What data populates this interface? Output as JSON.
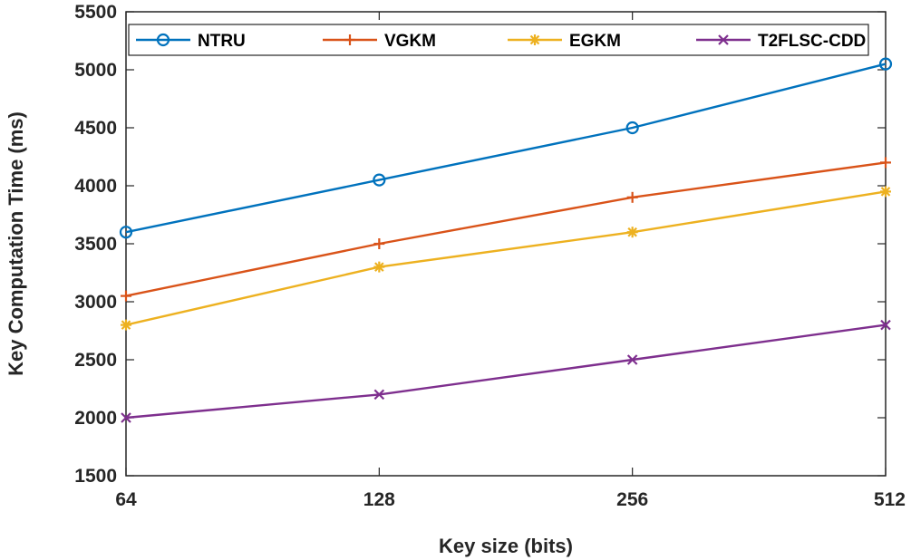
{
  "chart_data": {
    "type": "line",
    "title": "",
    "xlabel": "Key size (bits)",
    "ylabel": "Key Computation Time (ms)",
    "categories": [
      "64",
      "128",
      "256",
      "512"
    ],
    "yticks": [
      "1500",
      "2000",
      "2500",
      "3000",
      "3500",
      "4000",
      "4500",
      "5000",
      "5500"
    ],
    "ylim": [
      1500,
      5500
    ],
    "grid": false,
    "legend_position": "top",
    "series": [
      {
        "name": "NTRU",
        "values": [
          3600,
          4050,
          4500,
          5050
        ],
        "color": "#0072BD",
        "marker": "circle"
      },
      {
        "name": "VGKM",
        "values": [
          3050,
          3500,
          3900,
          4200
        ],
        "color": "#D95319",
        "marker": "plus"
      },
      {
        "name": "EGKM",
        "values": [
          2800,
          3300,
          3600,
          3950
        ],
        "color": "#EDB120",
        "marker": "asterisk"
      },
      {
        "name": "T2FLSC-CDD",
        "values": [
          2000,
          2200,
          2500,
          2800
        ],
        "color": "#7E2F8E",
        "marker": "x"
      }
    ]
  }
}
